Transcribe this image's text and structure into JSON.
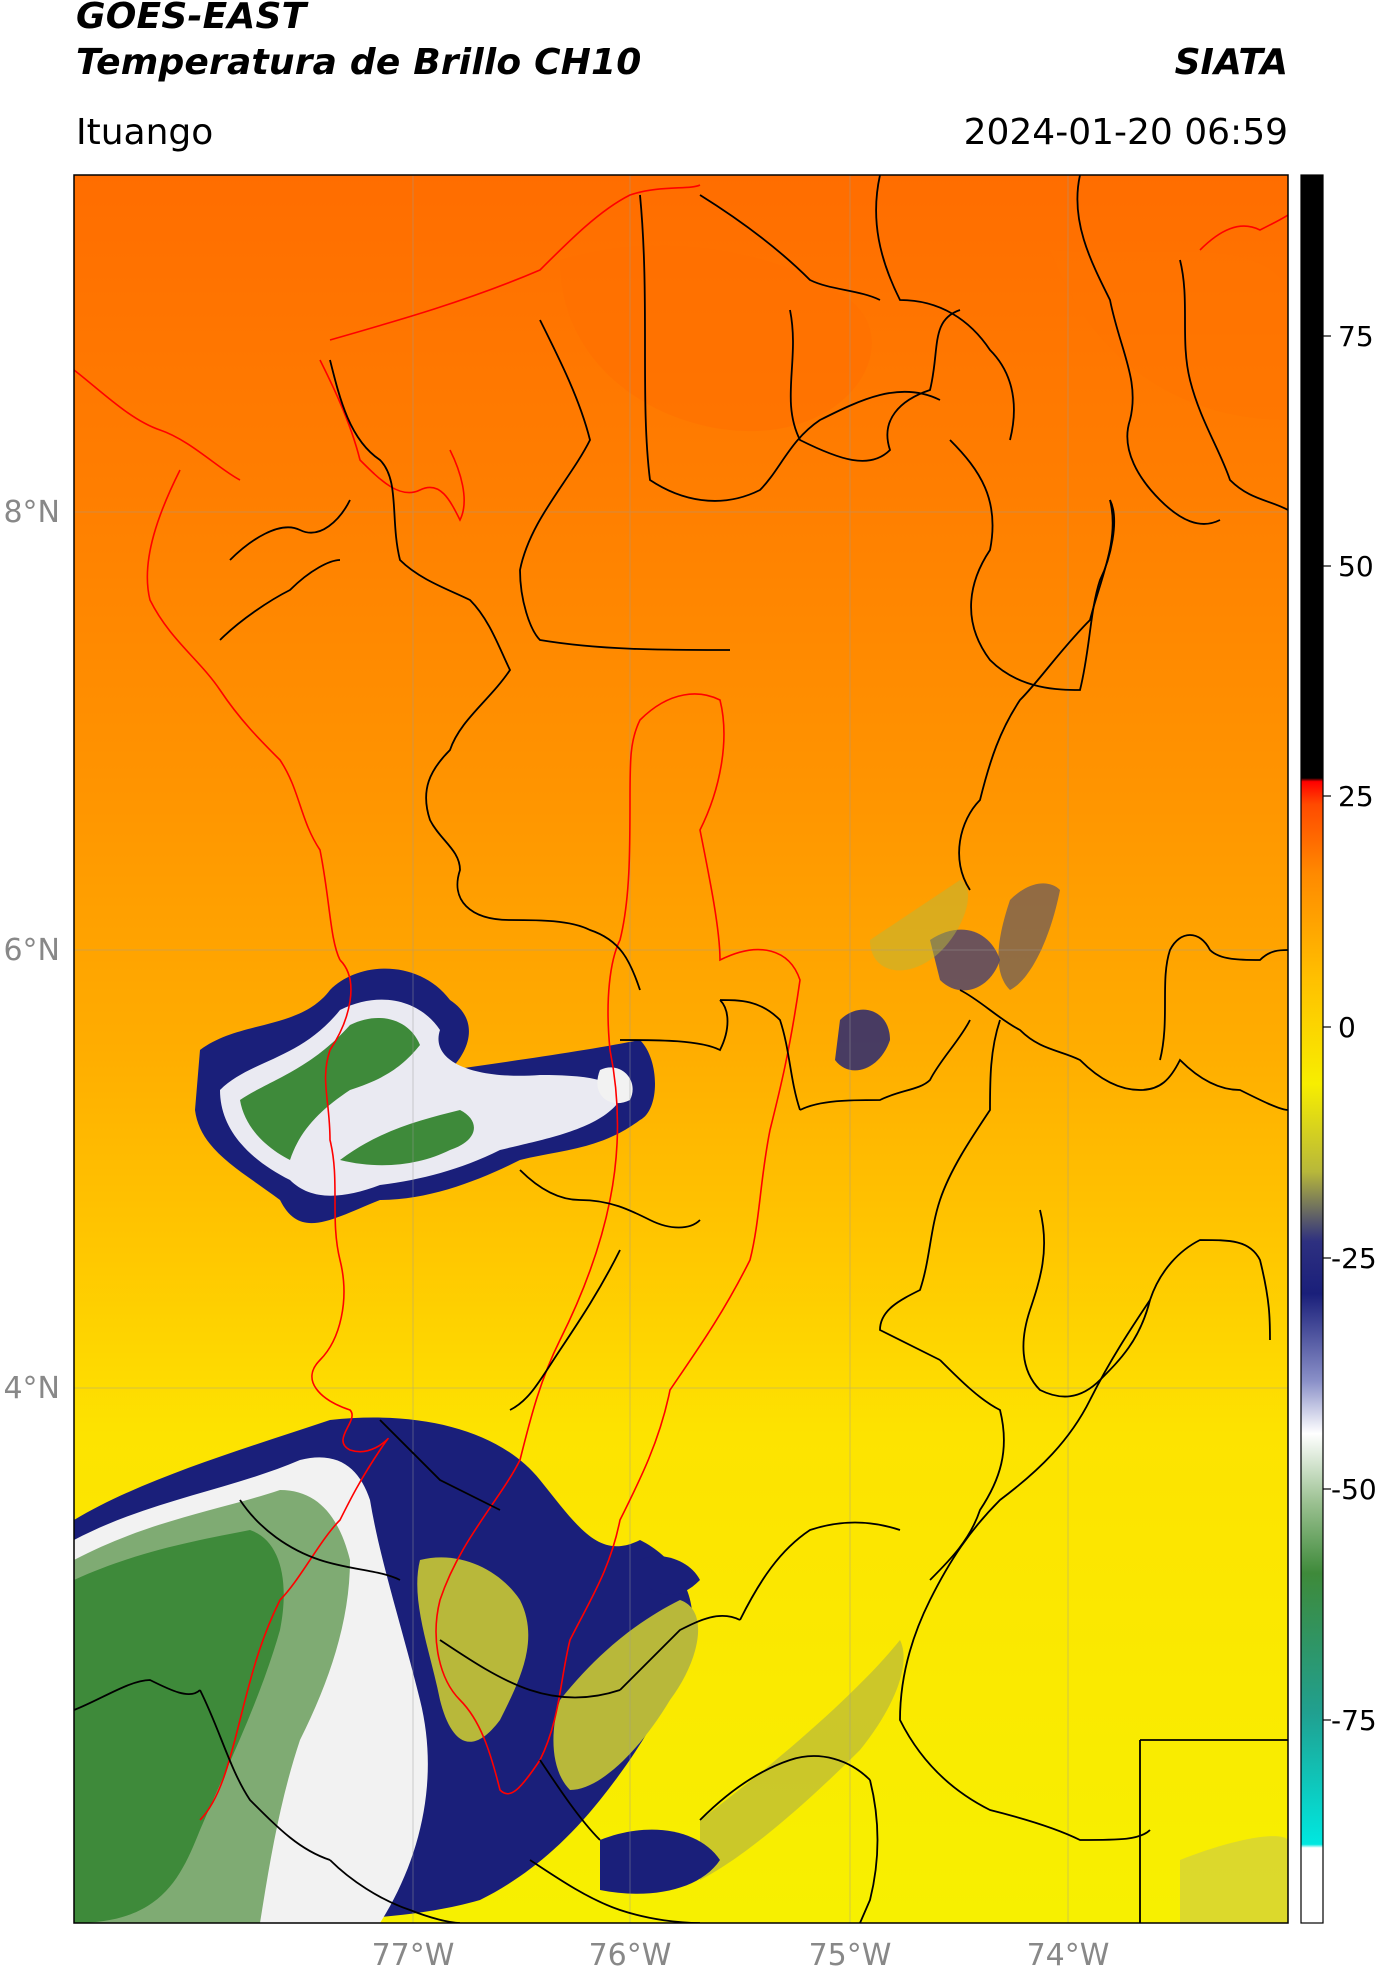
{
  "header": {
    "title_line1": "GOES-EAST",
    "title_line2": "Temperatura de Brillo CH10",
    "organization": "SIATA",
    "subtitle": "Ituango",
    "datetime": "2024-01-20 06:59"
  },
  "map": {
    "lon_ticks": [
      "77°W",
      "76°W",
      "75°W",
      "74°W"
    ],
    "lat_ticks": [
      "8°N",
      "6°N",
      "4°N"
    ],
    "colors": {
      "warm_orange": "#ff7a00",
      "orange": "#ff9a00",
      "yellow": "#f7ee00",
      "olive": "#b8b83a",
      "navy": "#1a1f7a",
      "white": "#f2f2f2",
      "green": "#3e8a3a",
      "boundary_black": "#000000",
      "boundary_red": "#ff0000"
    }
  },
  "colorbar": {
    "ticks": [
      "75",
      "50",
      "25",
      "0",
      "-25",
      "-50",
      "-75"
    ],
    "range": [
      -90,
      90
    ]
  }
}
